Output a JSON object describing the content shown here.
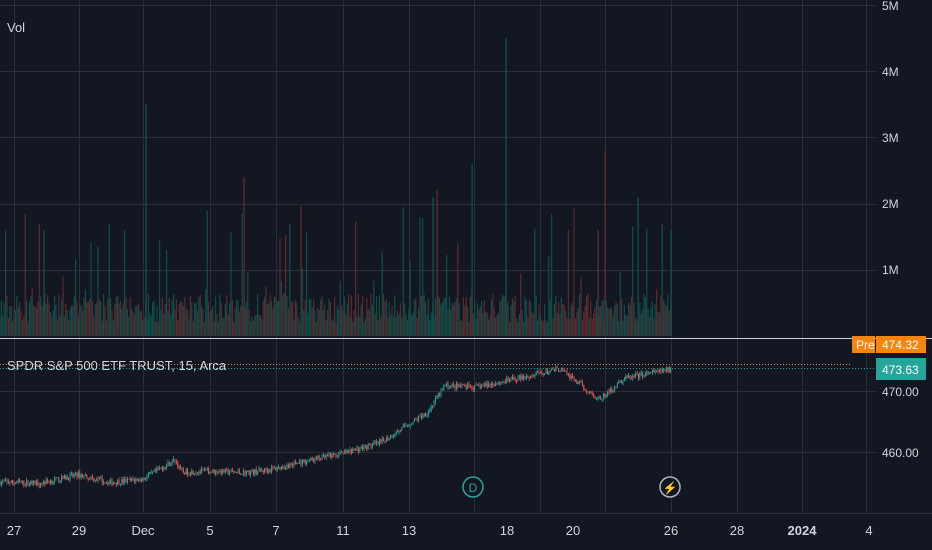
{
  "colors": {
    "background": "#131722",
    "grid": "#2a2e39",
    "text": "#d1d4dc",
    "up": "#26a69a",
    "down": "#ef5350",
    "vol_up": "#0f4f4a",
    "vol_down": "#5c2b2f",
    "pre_badge": "#f68410",
    "last_badge": "#26a69a",
    "dotted_line": "#f68410"
  },
  "volume_pane": {
    "label": "Vol",
    "axis_ticks": [
      "5M",
      "4M",
      "3M",
      "2M",
      "1M"
    ]
  },
  "price_pane": {
    "legend": "SPDR S&P 500 ETF TRUST, 15, Arca",
    "axis_ticks": [
      "470.00",
      "460.00"
    ],
    "pre_label": "Pre",
    "pre_price": "474.32",
    "last_price": "473.63",
    "dividend_marker": "D",
    "split_marker": "⚡"
  },
  "x_axis": {
    "labels": [
      "27",
      "29",
      "Dec",
      "5",
      "7",
      "11",
      "13",
      "18",
      "20",
      "26",
      "28",
      "2024",
      "4"
    ]
  },
  "chart_data": {
    "type": "candlestick",
    "symbol": "SPDR S&P 500 ETF TRUST",
    "interval": "15",
    "exchange": "Arca",
    "y_range": [
      451,
      477
    ],
    "y_ticks": [
      460,
      470
    ],
    "volume_range": [
      0,
      5000000
    ],
    "volume_ticks": [
      1000000,
      2000000,
      3000000,
      4000000,
      5000000
    ],
    "last_price": 473.63,
    "premarket_price": 474.32,
    "grid": true,
    "price_path": [
      {
        "day": "27",
        "price": 455.0
      },
      {
        "day": "28",
        "price": 454.8
      },
      {
        "day": "29",
        "price": 456.2
      },
      {
        "day": "30",
        "price": 454.9
      },
      {
        "day": "Dec",
        "price": 455.5
      },
      {
        "day": "1",
        "price": 458.6
      },
      {
        "day": "4",
        "price": 456.6
      },
      {
        "day": "5",
        "price": 456.8
      },
      {
        "day": "6",
        "price": 456.5
      },
      {
        "day": "7",
        "price": 457.2
      },
      {
        "day": "8",
        "price": 458.6
      },
      {
        "day": "11",
        "price": 459.7
      },
      {
        "day": "12",
        "price": 461.4
      },
      {
        "day": "13",
        "price": 466.5
      },
      {
        "day": "14",
        "price": 470.8
      },
      {
        "day": "15",
        "price": 470.5
      },
      {
        "day": "18",
        "price": 471.6
      },
      {
        "day": "19",
        "price": 473.5
      },
      {
        "day": "20",
        "price": 468.5
      },
      {
        "day": "21",
        "price": 472.0
      },
      {
        "day": "22",
        "price": 473.5
      }
    ]
  }
}
